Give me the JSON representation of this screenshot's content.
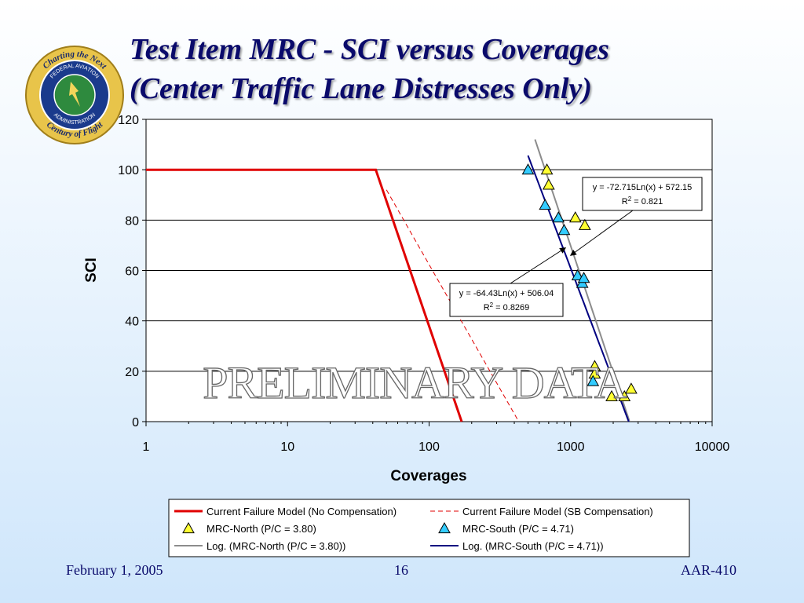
{
  "slide": {
    "title_line1": "Test Item MRC - SCI versus Coverages",
    "title_line2": "(Center Traffic Lane Distresses Only)",
    "footer_date": "February 1, 2005",
    "footer_page": "16",
    "footer_code": "AAR-410"
  },
  "logo": {
    "outer_top": "Charting the Next",
    "outer_bottom": "Century of Flight",
    "inner_top": "FEDERAL AVIATION",
    "inner_bottom": "ADMINISTRATION"
  },
  "watermark": "PRELIMINARY DATA",
  "colors": {
    "title": "#0a0a6b",
    "failure_model": "#e00000",
    "north_marker": "#ffff33",
    "south_marker": "#33ccff",
    "north_trend": "#8c8c8c",
    "south_trend": "#000080"
  },
  "chart_data": {
    "type": "scatter",
    "xscale": "log",
    "xlim": [
      1,
      10000
    ],
    "ylim": [
      0,
      120
    ],
    "xlabel": "Coverages",
    "ylabel": "SCI",
    "grid": "horizontal",
    "x_tick_labels": [
      "1",
      "10",
      "100",
      "1000",
      "10000"
    ],
    "y_tick_labels": [
      "0",
      "20",
      "40",
      "60",
      "80",
      "100",
      "120"
    ],
    "legend_position": "bottom",
    "series": [
      {
        "name": "Current Failure Model (No Compensation)",
        "kind": "line",
        "style": "solid-red",
        "points": [
          [
            1,
            100
          ],
          [
            42,
            100
          ],
          [
            170,
            0
          ]
        ]
      },
      {
        "name": "Current Failure Model (SB Compensation)",
        "kind": "line",
        "style": "dashed-red",
        "points": [
          [
            50,
            92
          ],
          [
            430,
            0
          ]
        ]
      },
      {
        "name": "MRC-North (P/C = 3.80)",
        "kind": "markers",
        "style": "yellow-triangle",
        "points": [
          [
            680,
            100
          ],
          [
            700,
            94
          ],
          [
            1080,
            81
          ],
          [
            1260,
            78
          ],
          [
            1480,
            22
          ],
          [
            1480,
            19
          ],
          [
            1950,
            10
          ],
          [
            2400,
            10
          ],
          [
            2680,
            13
          ]
        ]
      },
      {
        "name": "MRC-South (P/C = 4.71)",
        "kind": "markers",
        "style": "blue-triangle",
        "points": [
          [
            500,
            100
          ],
          [
            660,
            86
          ],
          [
            820,
            81
          ],
          [
            900,
            76
          ],
          [
            1120,
            58
          ],
          [
            1210,
            55
          ],
          [
            1240,
            57
          ],
          [
            1440,
            16
          ]
        ]
      },
      {
        "name": "Log. (MRC-North (P/C = 3.80))",
        "kind": "trend",
        "style": "gray-line",
        "coef": {
          "a": -72.715,
          "b": 572.15
        },
        "x_range": [
          560,
          2600
        ]
      },
      {
        "name": "Log. (MRC-South (P/C = 4.71))",
        "kind": "trend",
        "style": "navy-line",
        "coef": {
          "a": -64.43,
          "b": 506.04
        },
        "x_range": [
          500,
          2600
        ]
      }
    ],
    "annotations": [
      {
        "equation": "y = -72.715Ln(x) + 572.15",
        "r2_prefix": "R",
        "r2_value": " = 0.821",
        "arrow_to": [
          1000,
          66
        ]
      },
      {
        "equation": "y = -64.43Ln(x) + 506.04",
        "r2_prefix": "R",
        "r2_value": " = 0.8269",
        "arrow_to": [
          920,
          69
        ]
      }
    ]
  }
}
